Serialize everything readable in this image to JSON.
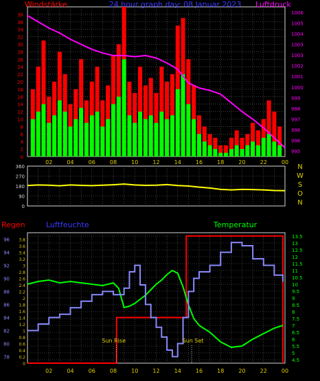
{
  "colors": {
    "background": "#000000",
    "frame": "#d8d8d8",
    "grid": "#707070",
    "axis_label": "#e0d000",
    "red": "#ff0000",
    "green": "#00ff00",
    "magenta": "#ff00ff",
    "blue": "#3a3aff",
    "yellow": "#ffff00",
    "light_blue": "#8a8aff"
  },
  "header": {
    "left": "Windstärke",
    "center": "24 hour graph day: 08 Januar 2023",
    "right": "Luftdruck"
  },
  "panel3_header": {
    "regen": "Regen",
    "luftfeuchte": "Luftfeuchte",
    "temperatur": "Temperatur"
  },
  "annotations": {
    "sun_rise": "Sun Rise",
    "sun_set": "Sun Set"
  },
  "direction_labels": [
    "N",
    "W",
    "S",
    "O",
    "N"
  ],
  "x_ticks": [
    "02",
    "04",
    "06",
    "08",
    "10",
    "12",
    "14",
    "16",
    "18",
    "20",
    "22",
    "00"
  ],
  "chart_data": [
    {
      "type": "bar",
      "title": "24 hour graph day: 08 Januar 2023",
      "xlabel": "",
      "x_range": [
        0,
        24
      ],
      "y_left": {
        "label": "Windstärke",
        "range": [
          0,
          40
        ],
        "ticks": [
          "0",
          "2",
          "4",
          "6",
          "8",
          "10",
          "12",
          "14",
          "16",
          "18",
          "20",
          "22",
          "24",
          "26",
          "28",
          "30",
          "32",
          "34",
          "36",
          "38"
        ]
      },
      "y_right": {
        "label": "Luftdruck",
        "range": [
          994.5,
          1006.5
        ],
        "ticks": [
          "995",
          "996",
          "996",
          "997",
          "998",
          "999",
          "1000",
          "1001",
          "1002",
          "1003",
          "1003",
          "1004",
          "1005",
          "1006"
        ]
      },
      "grid": true,
      "series": [
        {
          "name": "Windstärke",
          "color": "#00ff00",
          "type": "bar",
          "x": [
            0.5,
            1,
            1.5,
            2,
            2.5,
            3,
            3.5,
            4,
            4.5,
            5,
            5.5,
            6,
            6.5,
            7,
            7.5,
            8,
            8.5,
            9,
            9.5,
            10,
            10.5,
            11,
            11.5,
            12,
            12.5,
            13,
            13.5,
            14,
            14.5,
            15,
            15.5,
            16,
            16.5,
            17,
            17.5,
            18,
            18.5,
            19,
            19.5,
            20,
            20.5,
            21,
            21.5,
            22,
            22.5,
            23,
            23.5
          ],
          "values": [
            10,
            12,
            14,
            9,
            11,
            15,
            12,
            8,
            10,
            13,
            9,
            11,
            12,
            8,
            10,
            14,
            16,
            26,
            11,
            9,
            12,
            10,
            11,
            9,
            12,
            10,
            11,
            18,
            22,
            14,
            10,
            6,
            4,
            3,
            2,
            1,
            1,
            2,
            3,
            2,
            3,
            4,
            3,
            5,
            6,
            4,
            3
          ]
        },
        {
          "name": "Böen",
          "color": "#ff0000",
          "type": "bar",
          "x": [
            0.5,
            1,
            1.5,
            2,
            2.5,
            3,
            3.5,
            4,
            4.5,
            5,
            5.5,
            6,
            6.5,
            7,
            7.5,
            8,
            8.5,
            9,
            9.5,
            10,
            10.5,
            11,
            11.5,
            12,
            12.5,
            13,
            13.5,
            14,
            14.5,
            15,
            15.5,
            16,
            16.5,
            17,
            17.5,
            18,
            18.5,
            19,
            19.5,
            20,
            20.5,
            21,
            21.5,
            22,
            22.5,
            23,
            23.5
          ],
          "values": [
            18,
            24,
            31,
            16,
            20,
            28,
            22,
            14,
            18,
            26,
            15,
            20,
            24,
            15,
            19,
            27,
            30,
            40,
            20,
            17,
            24,
            19,
            21,
            17,
            24,
            20,
            22,
            35,
            37,
            26,
            19,
            11,
            8,
            6,
            5,
            3,
            3,
            5,
            7,
            5,
            6,
            9,
            7,
            10,
            15,
            12,
            8
          ]
        },
        {
          "name": "Luftdruck",
          "color": "#ff00ff",
          "type": "line",
          "axis": "right",
          "x": [
            0,
            1,
            2,
            3,
            4,
            5,
            6,
            7,
            8,
            9,
            10,
            11,
            12,
            13,
            14,
            15,
            16,
            17,
            18,
            19,
            20,
            21,
            22,
            23,
            24
          ],
          "values": [
            1005.8,
            1005.3,
            1004.8,
            1004.4,
            1003.9,
            1003.5,
            1003.1,
            1002.8,
            1002.6,
            1002.6,
            1002.5,
            1002.6,
            1002.4,
            1002.0,
            1001.5,
            1000.4,
            1000.0,
            999.8,
            999.5,
            998.8,
            998.1,
            997.5,
            996.8,
            996.0,
            995.2
          ]
        }
      ]
    },
    {
      "type": "line",
      "title": "",
      "x_range": [
        0,
        24
      ],
      "y_range": [
        0,
        360
      ],
      "y_ticks": [
        "0",
        "90",
        "180",
        "270",
        "360"
      ],
      "grid": true,
      "series": [
        {
          "name": "",
          "color": "#ffff00",
          "x": [
            0,
            1,
            2,
            3,
            4,
            5,
            6,
            7,
            8,
            9,
            10,
            11,
            12,
            13,
            14,
            15,
            16,
            17,
            18,
            19,
            20,
            21,
            22,
            23,
            24
          ],
          "values": [
            185,
            190,
            188,
            182,
            190,
            186,
            184,
            188,
            192,
            198,
            190,
            186,
            188,
            193,
            185,
            180,
            170,
            162,
            150,
            145,
            150,
            148,
            145,
            140,
            138
          ]
        }
      ]
    },
    {
      "type": "line",
      "title": "",
      "x_range": [
        0,
        24
      ],
      "y_left_outer": {
        "label": "Regen",
        "range": [
          0,
          4
        ],
        "ticks": [
          "0",
          "0.2",
          "0.4",
          "0.6",
          "0.8",
          "1",
          "1.2",
          "1.4",
          "1.6",
          "1.8",
          "2",
          "2.2",
          "2.4",
          "2.6",
          "2.8",
          "3",
          "3.2",
          "3.4",
          "3.6",
          "3.8"
        ]
      },
      "y_left_inner": {
        "label": "Luftfeuchte",
        "range": [
          77,
          97
        ],
        "ticks": [
          "78",
          "80",
          "82",
          "84",
          "86",
          "88",
          "90",
          "92",
          "94",
          "96"
        ]
      },
      "y_right": {
        "label": "Temperatur",
        "range": [
          4.25,
          13.75
        ],
        "ticks": [
          "4.5",
          "5",
          "5.5",
          "6",
          "6.5",
          "7",
          "7.5",
          "8",
          "8.5",
          "9",
          "9.5",
          "10",
          "10.5",
          "11",
          "11.5",
          "12",
          "12.5",
          "13",
          "13.5"
        ]
      },
      "grid": true,
      "series": [
        {
          "name": "Regen",
          "color": "#ff0000",
          "x": [
            0,
            8.3,
            8.3,
            14.8,
            14.8,
            23.8,
            23.8
          ],
          "values": [
            0,
            0,
            1.4,
            1.4,
            3.9,
            3.9,
            0
          ]
        },
        {
          "name": "Luftfeuchte",
          "color": "#8a8aff",
          "x": [
            0,
            1,
            2,
            3,
            4,
            5,
            6,
            7,
            7.5,
            8,
            8.5,
            9,
            9.5,
            10,
            10.5,
            11,
            11.5,
            12,
            12.5,
            13,
            13.5,
            14,
            14.5,
            15,
            15.5,
            16,
            17,
            18,
            19,
            20,
            21,
            22,
            23,
            23.8
          ],
          "values": [
            82,
            83,
            84,
            84.5,
            85.5,
            86.5,
            87.5,
            88,
            88,
            87.5,
            87.5,
            88.5,
            91,
            92,
            89,
            86,
            84,
            82.5,
            81,
            79,
            78,
            80,
            84,
            88,
            90,
            91,
            92,
            94,
            95.5,
            95,
            93,
            92,
            90.5,
            89.5
          ]
        },
        {
          "name": "Temperatur",
          "color": "#00ff00",
          "x": [
            0,
            1,
            2,
            3,
            4,
            5,
            6,
            7,
            7.5,
            8,
            8.5,
            9,
            9.5,
            10,
            10.5,
            11,
            11.5,
            12,
            12.5,
            13,
            13.5,
            14,
            14.5,
            15,
            15.5,
            16,
            17,
            18,
            19,
            20,
            21,
            22,
            23,
            23.8
          ],
          "values": [
            10,
            10.2,
            10.3,
            10.1,
            10.2,
            10.1,
            10.0,
            9.9,
            10.0,
            10.1,
            9.7,
            8.3,
            8.4,
            8.6,
            8.9,
            9.2,
            9.6,
            10.0,
            10.3,
            10.7,
            11.0,
            10.8,
            9.8,
            8.5,
            7.5,
            7.0,
            6.5,
            5.8,
            5.4,
            5.5,
            6.0,
            6.4,
            6.8,
            7.0
          ]
        }
      ],
      "annotations": [
        {
          "label": "Sun Rise",
          "x": 8.3
        },
        {
          "label": "Sun Set",
          "x": 15.3
        }
      ]
    }
  ]
}
